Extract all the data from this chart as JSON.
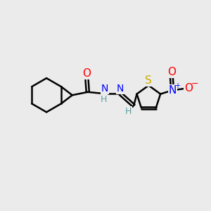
{
  "background_color": "#ebebeb",
  "bond_color": "#000000",
  "bond_width": 1.8,
  "atom_colors": {
    "O": "#ff0000",
    "N": "#0000ff",
    "S": "#ccaa00",
    "C": "#000000",
    "H": "#5f9ea0"
  },
  "font_size": 9,
  "fig_size": [
    3.0,
    3.0
  ],
  "dpi": 100
}
